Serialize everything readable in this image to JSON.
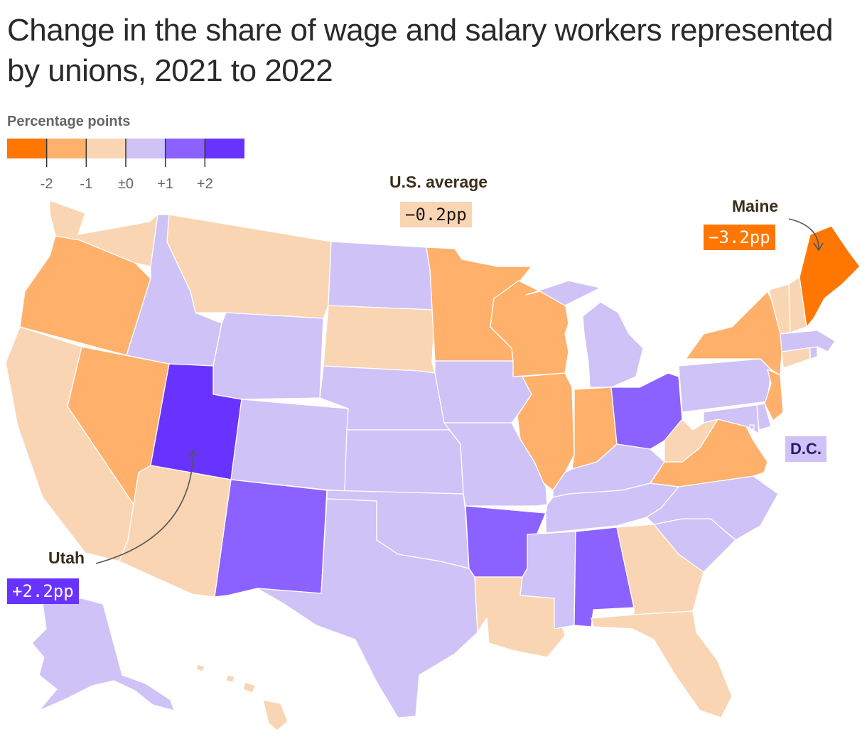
{
  "title": "Change in the share of wage and salary workers represented by unions, 2021 to 2022",
  "legend": {
    "title": "Percentage points",
    "colors": [
      "#ff7600",
      "#ffb06b",
      "#f9d5b3",
      "#cfc2f6",
      "#8b62ff",
      "#6933ff"
    ],
    "ticks": [
      "-2",
      "-1",
      "±0",
      "+1",
      "+2"
    ]
  },
  "callouts": {
    "us_average": {
      "label": "U.S. average",
      "value": "−0.2pp",
      "color": "#f9d5b3"
    },
    "maine": {
      "label": "Maine",
      "value": "−3.2pp",
      "color": "#ff7600"
    },
    "utah": {
      "label": "Utah",
      "value": "+2.2pp",
      "color": "#6933ff"
    },
    "dc": {
      "label": "D.C.",
      "color": "#cfc2f6"
    }
  },
  "states": {
    "WA": "light-orange",
    "OR": "mid-orange",
    "CA": "light-orange",
    "NV": "mid-orange",
    "ID": "light-purple",
    "MT": "light-orange",
    "WY": "light-purple",
    "UT": "dark-purple",
    "AZ": "light-orange",
    "CO": "light-purple",
    "NM": "mid-purple",
    "ND": "light-purple",
    "SD": "light-orange",
    "NE": "light-purple",
    "KS": "light-purple",
    "OK": "light-purple",
    "TX": "light-purple",
    "MN": "mid-orange",
    "IA": "light-purple",
    "MO": "light-purple",
    "AR": "mid-purple",
    "LA": "light-orange",
    "WI": "mid-orange",
    "IL": "mid-orange",
    "MI": "light-purple",
    "IN": "mid-orange",
    "OH": "mid-purple",
    "KY": "light-purple",
    "TN": "light-purple",
    "MS": "light-purple",
    "AL": "mid-purple",
    "GA": "light-orange",
    "FL": "light-orange",
    "SC": "light-purple",
    "NC": "light-purple",
    "VA": "mid-orange",
    "WV": "light-orange",
    "PA": "light-purple",
    "NY": "mid-orange",
    "NJ": "mid-orange",
    "DE": "light-purple",
    "MD": "light-purple",
    "CT": "light-orange",
    "RI": "light-purple",
    "MA": "light-purple",
    "VT": "light-orange",
    "NH": "light-orange",
    "ME": "dark-orange",
    "AK": "light-purple",
    "HI": "light-orange"
  }
}
